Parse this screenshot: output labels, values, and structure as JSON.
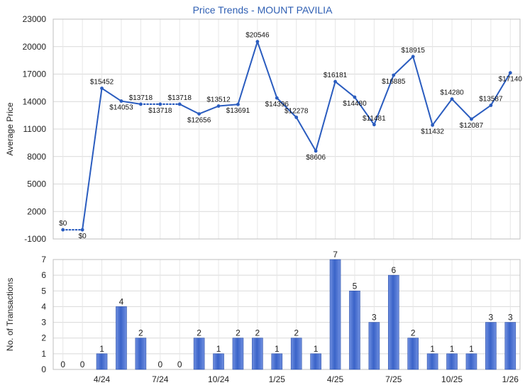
{
  "chart_data": [
    {
      "type": "line",
      "title": "Price Trends - MOUNT PAVILIA",
      "ylabel": "Average Price",
      "ylim": [
        -1000,
        23000
      ],
      "yticks": [
        -1000,
        2000,
        5000,
        8000,
        11000,
        14000,
        17000,
        20000,
        23000
      ],
      "grid": true,
      "line_color": "#2a5cbf",
      "values": [
        0,
        0,
        15452,
        14053,
        13718,
        13718,
        13718,
        12656,
        13512,
        13691,
        20546,
        14396,
        12278,
        8606,
        16181,
        14480,
        11481,
        16885,
        18915,
        11432,
        14280,
        12087,
        13587,
        17140
      ],
      "labels": [
        "$0",
        "$0",
        "$15452",
        "$14053",
        "$13718",
        "$13718",
        "$13718",
        "$12656",
        "$13512",
        "$13691",
        "$20546",
        "$14396",
        "$12278",
        "$8606",
        "$16181",
        "$14480",
        "$11481",
        "$16885",
        "$18915",
        "$11432",
        "$14280",
        "$12087",
        "$13587",
        "$17140"
      ],
      "dotted_segments": [
        [
          0,
          1
        ],
        [
          4,
          5
        ],
        [
          5,
          6
        ]
      ]
    },
    {
      "type": "bar",
      "ylabel": "No. of Transactions",
      "ylim": [
        0,
        7
      ],
      "yticks": [
        0,
        1,
        2,
        3,
        4,
        5,
        6,
        7
      ],
      "grid": true,
      "bar_color": "#3a63c8",
      "values": [
        0,
        0,
        1,
        4,
        2,
        0,
        0,
        2,
        1,
        2,
        2,
        1,
        2,
        1,
        7,
        5,
        3,
        6,
        2,
        1,
        1,
        1,
        3,
        3
      ],
      "x_tick_labels": [
        {
          "index": 2,
          "label": "4/24"
        },
        {
          "index": 5,
          "label": "7/24"
        },
        {
          "index": 8,
          "label": "10/24"
        },
        {
          "index": 11,
          "label": "1/25"
        },
        {
          "index": 14,
          "label": "4/25"
        },
        {
          "index": 17,
          "label": "7/25"
        },
        {
          "index": 20,
          "label": "10/25"
        },
        {
          "index": 23,
          "label": "1/26"
        }
      ]
    }
  ]
}
